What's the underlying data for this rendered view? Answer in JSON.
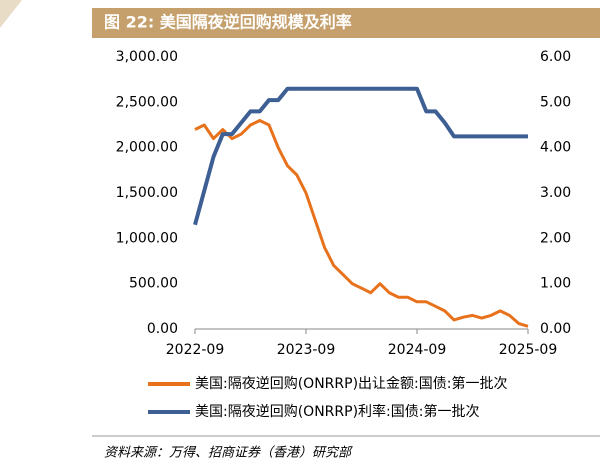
{
  "chart_data": {
    "type": "line",
    "title": "图 22:  美国隔夜逆回购规模及利率",
    "source": "资料来源：万得、招商证券（香港）研究部",
    "x": [
      "2022-09",
      "2022-10",
      "2022-11",
      "2022-12",
      "2023-01",
      "2023-02",
      "2023-03",
      "2023-04",
      "2023-05",
      "2023-06",
      "2023-07",
      "2023-08",
      "2023-09",
      "2023-10",
      "2023-11",
      "2023-12",
      "2024-01",
      "2024-02",
      "2024-03",
      "2024-04",
      "2024-05",
      "2024-06",
      "2024-07",
      "2024-08",
      "2024-09",
      "2024-10",
      "2024-11",
      "2024-12",
      "2025-01",
      "2025-02",
      "2025-03",
      "2025-04",
      "2025-05",
      "2025-06",
      "2025-07",
      "2025-08",
      "2025-09"
    ],
    "xticks": [
      "2022-09",
      "2023-09",
      "2024-09",
      "2025-09"
    ],
    "series": [
      {
        "name": "美国:隔夜逆回购(ONRRP)出让金额:国债:第一批次",
        "color": "#e8711c",
        "axis": "y",
        "values": [
          2200,
          2250,
          2100,
          2200,
          2100,
          2150,
          2250,
          2300,
          2250,
          2000,
          1800,
          1700,
          1500,
          1200,
          900,
          700,
          600,
          500,
          450,
          400,
          500,
          400,
          350,
          350,
          300,
          300,
          250,
          200,
          100,
          130,
          150,
          120,
          150,
          200,
          150,
          60,
          30
        ]
      },
      {
        "name": "美国:隔夜逆回购(ONRRP)利率:国债:第一批次",
        "color": "#3d5f94",
        "axis": "y2",
        "values": [
          2.3,
          3.05,
          3.8,
          4.3,
          4.3,
          4.55,
          4.8,
          4.8,
          5.05,
          5.05,
          5.3,
          5.3,
          5.3,
          5.3,
          5.3,
          5.3,
          5.3,
          5.3,
          5.3,
          5.3,
          5.3,
          5.3,
          5.3,
          5.3,
          5.3,
          4.8,
          4.8,
          4.55,
          4.25,
          4.25,
          4.25,
          4.25,
          4.25,
          4.25,
          4.25,
          4.25,
          4.25
        ]
      }
    ],
    "ylim": [
      0,
      3000
    ],
    "yticks": [
      {
        "value": 0,
        "label": "0.00"
      },
      {
        "value": 500,
        "label": "500.00"
      },
      {
        "value": 1000,
        "label": "1,000.00"
      },
      {
        "value": 1500,
        "label": "1,500.00"
      },
      {
        "value": 2000,
        "label": "2,000.00"
      },
      {
        "value": 2500,
        "label": "2,500.00"
      },
      {
        "value": 3000,
        "label": "3,000.00"
      }
    ],
    "y2lim": [
      0,
      6
    ],
    "y2ticks": [
      {
        "value": 0,
        "label": "0.00"
      },
      {
        "value": 1,
        "label": "1.00"
      },
      {
        "value": 2,
        "label": "2.00"
      },
      {
        "value": 3,
        "label": "3.00"
      },
      {
        "value": 4,
        "label": "4.00"
      },
      {
        "value": 5,
        "label": "5.00"
      },
      {
        "value": 6,
        "label": "6.00"
      }
    ],
    "grid": false
  }
}
